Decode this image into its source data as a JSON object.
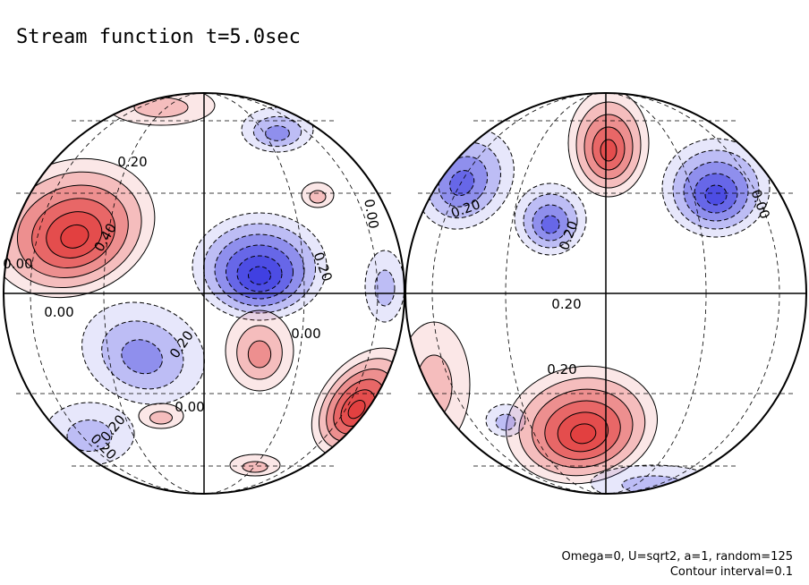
{
  "title": "Stream function t=5.0sec",
  "contour_labels": [
    "0.20",
    "0.40",
    "0.20",
    "0.00",
    "0.00",
    "0.20",
    "0.00",
    "0.00",
    "0.20",
    "0.00",
    "0.20",
    "0.20",
    "0.20",
    "0.00",
    "0.20",
    "0.20"
  ],
  "notes": [
    "Omega=0, U=sqrt2, a=1, random=125",
    "Contour interval=0.1"
  ]
}
